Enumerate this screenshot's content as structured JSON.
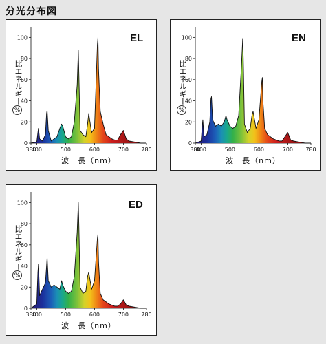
{
  "page": {
    "title": "分光分布図"
  },
  "chart_data": [
    {
      "type": "area",
      "title": "EL",
      "ylabel": "比エネルギー",
      "yunit": "%",
      "xlabel": "波　長（nm）",
      "xlim": [
        380,
        780
      ],
      "ylim": [
        0,
        110
      ],
      "xticks": [
        380,
        400,
        500,
        600,
        700,
        780
      ],
      "yticks": [
        0,
        20,
        40,
        60,
        80,
        100
      ],
      "x": [
        380,
        400,
        404,
        406,
        410,
        420,
        430,
        434,
        436,
        440,
        450,
        460,
        470,
        480,
        486,
        490,
        500,
        510,
        520,
        530,
        540,
        544,
        546,
        550,
        560,
        570,
        576,
        580,
        590,
        600,
        610,
        612,
        614,
        620,
        630,
        640,
        650,
        660,
        670,
        680,
        690,
        700,
        710,
        720,
        740,
        760,
        780
      ],
      "values": [
        0,
        1,
        10,
        14,
        4,
        2,
        8,
        28,
        31,
        12,
        2,
        4,
        6,
        14,
        18,
        16,
        6,
        4,
        6,
        20,
        55,
        88,
        65,
        12,
        8,
        6,
        18,
        28,
        10,
        14,
        93,
        100,
        70,
        30,
        18,
        8,
        6,
        4,
        3,
        3,
        8,
        12,
        4,
        2,
        1,
        0,
        0
      ]
    },
    {
      "type": "area",
      "title": "EN",
      "ylabel": "比エネルギー",
      "yunit": "%",
      "xlabel": "波　長（nm）",
      "xlim": [
        380,
        780
      ],
      "ylim": [
        0,
        110
      ],
      "xticks": [
        380,
        400,
        500,
        600,
        700,
        780
      ],
      "yticks": [
        0,
        20,
        40,
        60,
        80,
        100
      ],
      "x": [
        380,
        400,
        404,
        406,
        410,
        420,
        430,
        434,
        436,
        440,
        450,
        460,
        470,
        480,
        486,
        490,
        500,
        510,
        520,
        530,
        540,
        544,
        546,
        550,
        560,
        570,
        576,
        580,
        590,
        600,
        610,
        612,
        614,
        620,
        630,
        640,
        650,
        660,
        670,
        680,
        690,
        700,
        710,
        720,
        740,
        760,
        780
      ],
      "values": [
        0,
        2,
        16,
        22,
        6,
        8,
        20,
        42,
        44,
        22,
        16,
        18,
        16,
        20,
        26,
        22,
        16,
        14,
        16,
        26,
        75,
        99,
        80,
        18,
        10,
        14,
        26,
        30,
        14,
        22,
        58,
        62,
        40,
        14,
        8,
        6,
        4,
        3,
        2,
        2,
        6,
        10,
        3,
        2,
        1,
        0,
        0
      ]
    },
    {
      "type": "area",
      "title": "ED",
      "ylabel": "比エネルギー",
      "yunit": "%",
      "xlabel": "波　長（nm）",
      "xlim": [
        380,
        780
      ],
      "ylim": [
        0,
        110
      ],
      "xticks": [
        380,
        400,
        500,
        600,
        700,
        780
      ],
      "yticks": [
        0,
        20,
        40,
        60,
        80,
        100
      ],
      "x": [
        380,
        400,
        404,
        406,
        410,
        420,
        430,
        434,
        436,
        440,
        450,
        460,
        470,
        480,
        486,
        490,
        500,
        510,
        520,
        530,
        540,
        544,
        546,
        550,
        560,
        570,
        576,
        580,
        590,
        600,
        610,
        612,
        614,
        620,
        630,
        640,
        650,
        660,
        670,
        680,
        690,
        700,
        710,
        720,
        740,
        760,
        780
      ],
      "values": [
        0,
        4,
        34,
        42,
        12,
        18,
        24,
        40,
        48,
        26,
        20,
        22,
        20,
        18,
        26,
        22,
        16,
        14,
        16,
        30,
        72,
        100,
        78,
        20,
        14,
        16,
        30,
        34,
        18,
        26,
        66,
        70,
        44,
        14,
        8,
        6,
        4,
        3,
        2,
        2,
        4,
        8,
        3,
        2,
        1,
        0,
        0
      ]
    }
  ]
}
